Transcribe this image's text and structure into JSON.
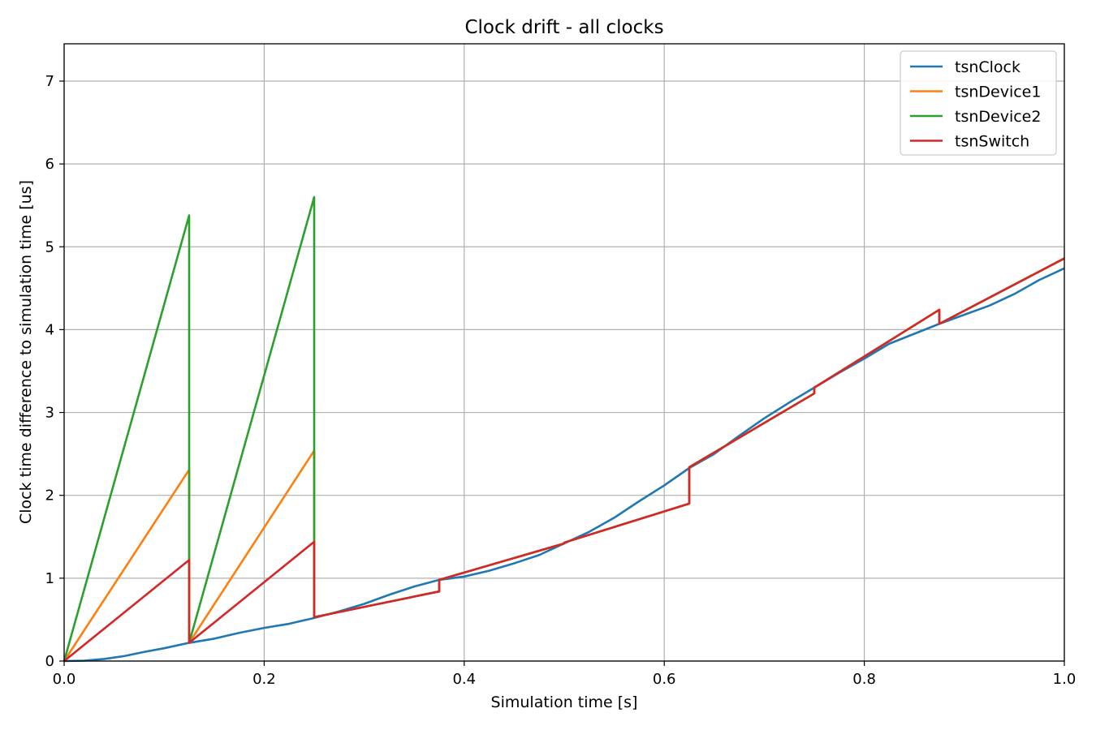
{
  "chart_data": {
    "type": "line",
    "title": "Clock drift - all clocks",
    "xlabel": "Simulation time [s]",
    "ylabel": "Clock time difference to simulation time [us]",
    "xlim": [
      0.0,
      1.0
    ],
    "ylim": [
      0,
      7.45
    ],
    "xticks": [
      0.0,
      0.2,
      0.4,
      0.6,
      0.8,
      1.0
    ],
    "xtick_labels": [
      "0.0",
      "0.2",
      "0.4",
      "0.6",
      "0.8",
      "1.0"
    ],
    "yticks": [
      0,
      1,
      2,
      3,
      4,
      5,
      6,
      7
    ],
    "ytick_labels": [
      "0",
      "1",
      "2",
      "3",
      "4",
      "5",
      "6",
      "7"
    ],
    "grid": true,
    "legend_position": "top-right",
    "series": [
      {
        "name": "tsnClock",
        "color": "#1f77b4",
        "points": [
          [
            0.0,
            0.0
          ],
          [
            0.02,
            0.005
          ],
          [
            0.04,
            0.025
          ],
          [
            0.06,
            0.06
          ],
          [
            0.08,
            0.11
          ],
          [
            0.1,
            0.155
          ],
          [
            0.125,
            0.22
          ],
          [
            0.15,
            0.27
          ],
          [
            0.175,
            0.34
          ],
          [
            0.2,
            0.4
          ],
          [
            0.225,
            0.45
          ],
          [
            0.25,
            0.52
          ],
          [
            0.275,
            0.6
          ],
          [
            0.3,
            0.69
          ],
          [
            0.325,
            0.8
          ],
          [
            0.35,
            0.9
          ],
          [
            0.375,
            0.98
          ],
          [
            0.4,
            1.02
          ],
          [
            0.425,
            1.09
          ],
          [
            0.45,
            1.18
          ],
          [
            0.475,
            1.28
          ],
          [
            0.5,
            1.42
          ],
          [
            0.525,
            1.56
          ],
          [
            0.55,
            1.73
          ],
          [
            0.575,
            1.93
          ],
          [
            0.6,
            2.12
          ],
          [
            0.625,
            2.33
          ],
          [
            0.65,
            2.5
          ],
          [
            0.675,
            2.72
          ],
          [
            0.7,
            2.93
          ],
          [
            0.725,
            3.12
          ],
          [
            0.75,
            3.3
          ],
          [
            0.775,
            3.48
          ],
          [
            0.8,
            3.65
          ],
          [
            0.825,
            3.83
          ],
          [
            0.85,
            3.95
          ],
          [
            0.875,
            4.07
          ],
          [
            0.9,
            4.18
          ],
          [
            0.925,
            4.29
          ],
          [
            0.95,
            4.43
          ],
          [
            0.975,
            4.6
          ],
          [
            1.0,
            4.74
          ]
        ]
      },
      {
        "name": "tsnDevice1",
        "color": "#ff7f0e",
        "points": [
          [
            0.0,
            0.0
          ],
          [
            0.125,
            2.31
          ],
          [
            0.125,
            0.22
          ],
          [
            0.25,
            2.54
          ],
          [
            0.25,
            0.53
          ],
          [
            0.375,
            0.84
          ],
          [
            0.375,
            0.98
          ],
          [
            0.5,
            1.42
          ],
          [
            0.5,
            1.43
          ],
          [
            0.625,
            1.9
          ],
          [
            0.625,
            2.34
          ],
          [
            0.75,
            3.23
          ],
          [
            0.75,
            3.3
          ],
          [
            0.875,
            4.24
          ],
          [
            0.875,
            4.07
          ],
          [
            1.0,
            4.86
          ]
        ]
      },
      {
        "name": "tsnDevice2",
        "color": "#2ca02c",
        "points": [
          [
            0.0,
            0.0
          ],
          [
            0.125,
            5.38
          ],
          [
            0.125,
            0.22
          ],
          [
            0.25,
            5.6
          ],
          [
            0.25,
            0.53
          ],
          [
            0.375,
            0.84
          ],
          [
            0.375,
            0.98
          ],
          [
            0.5,
            1.42
          ],
          [
            0.5,
            1.43
          ],
          [
            0.625,
            1.9
          ],
          [
            0.625,
            2.34
          ],
          [
            0.75,
            3.23
          ],
          [
            0.75,
            3.3
          ],
          [
            0.875,
            4.24
          ],
          [
            0.875,
            4.07
          ],
          [
            1.0,
            4.86
          ]
        ]
      },
      {
        "name": "tsnSwitch",
        "color": "#d62728",
        "points": [
          [
            0.0,
            0.0
          ],
          [
            0.125,
            1.22
          ],
          [
            0.125,
            0.22
          ],
          [
            0.25,
            1.44
          ],
          [
            0.25,
            0.53
          ],
          [
            0.375,
            0.84
          ],
          [
            0.375,
            0.98
          ],
          [
            0.5,
            1.42
          ],
          [
            0.5,
            1.43
          ],
          [
            0.625,
            1.9
          ],
          [
            0.625,
            2.34
          ],
          [
            0.75,
            3.23
          ],
          [
            0.75,
            3.3
          ],
          [
            0.875,
            4.24
          ],
          [
            0.875,
            4.07
          ],
          [
            1.0,
            4.86
          ]
        ]
      }
    ]
  }
}
